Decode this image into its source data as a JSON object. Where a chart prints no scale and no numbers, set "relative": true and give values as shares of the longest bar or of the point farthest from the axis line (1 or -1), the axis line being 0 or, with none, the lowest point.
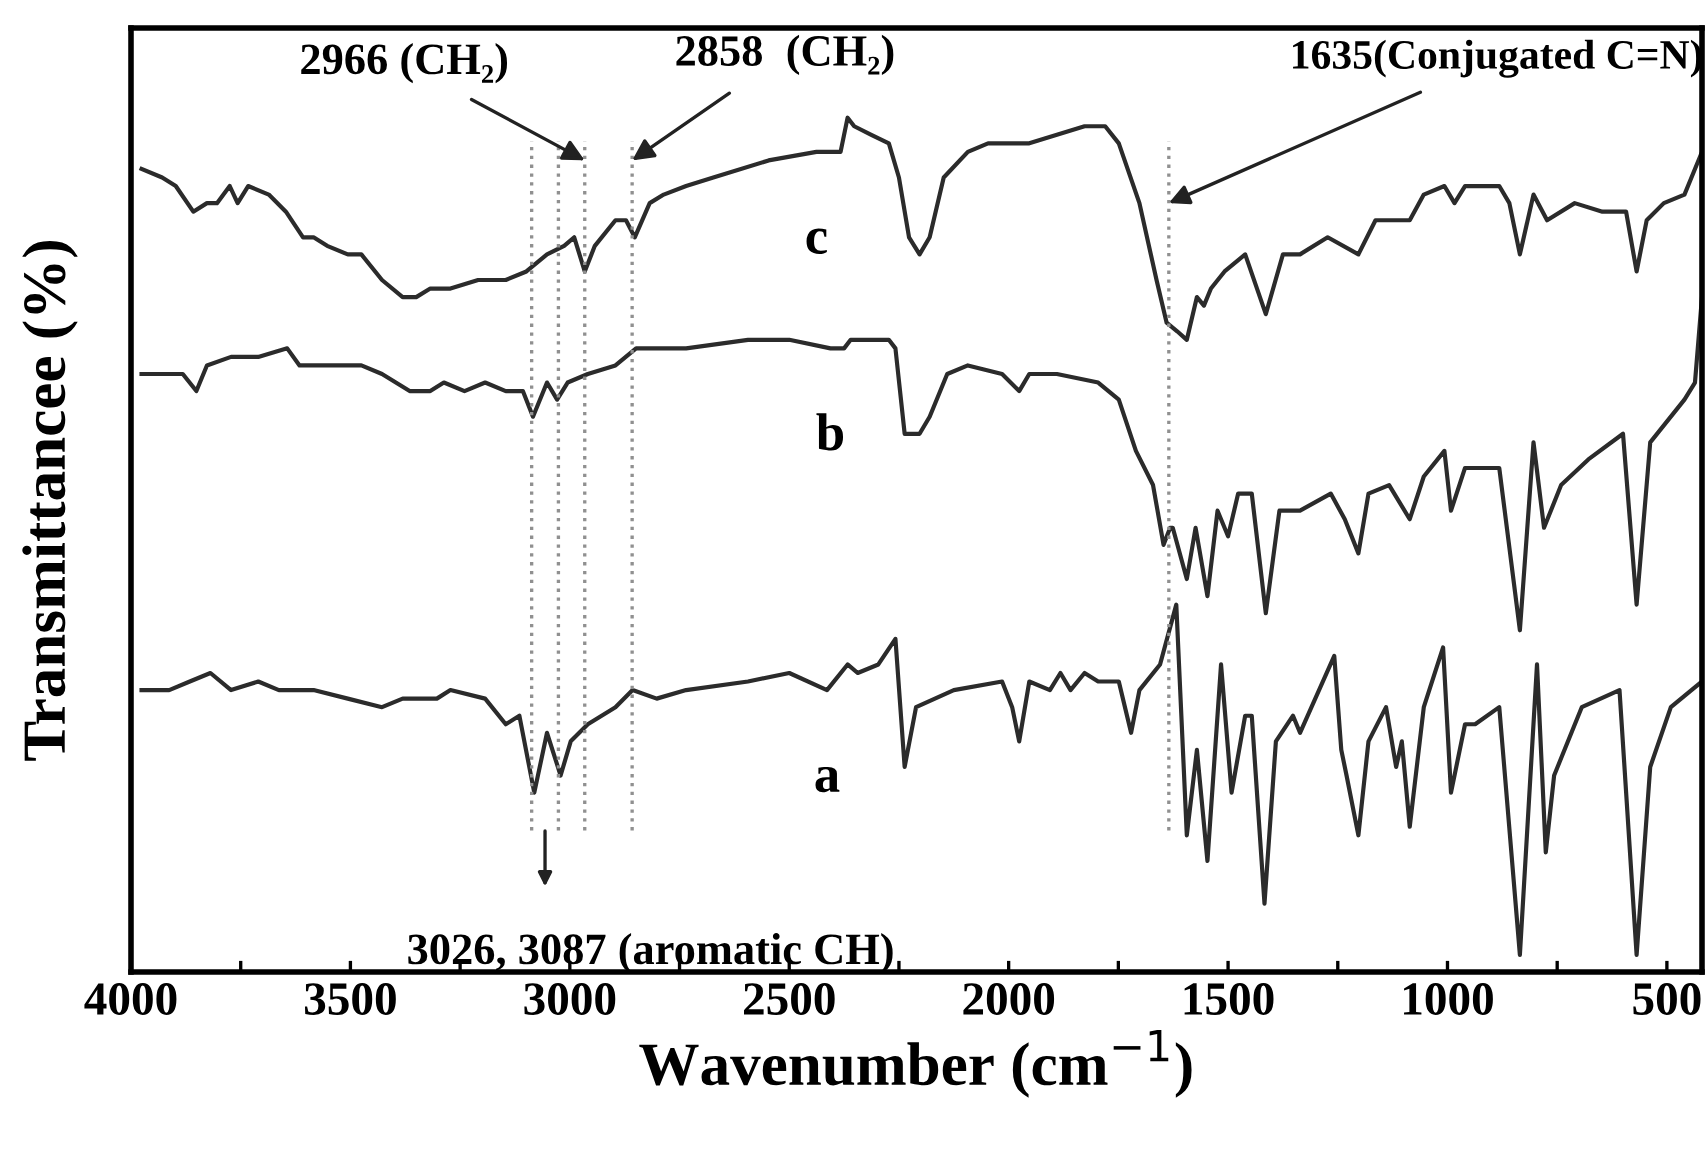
{
  "chart_data": {
    "type": "line",
    "relative": true,
    "xlabel": "Wavenumber (cm$^{−1}$)",
    "ylabel": "Transmittancee (%)",
    "xlim": [
      4000,
      420
    ],
    "xticks": [
      4000,
      {
        "value": 3750,
        "label": null
      },
      3500,
      {
        "value": 3250,
        "label": null
      },
      3000,
      {
        "value": 2750,
        "label": null
      },
      2500,
      {
        "value": 2250,
        "label": null
      },
      2000,
      {
        "value": 1750,
        "label": null
      },
      1500,
      {
        "value": 1250,
        "label": null
      },
      1000,
      {
        "value": 750,
        "label": null
      },
      500
    ],
    "tick_labels": "x",
    "grid": false,
    "marker": "none",
    "line_style": "solid",
    "series": [
      {
        "name": "c",
        "color": "#2b2b2b",
        "x": [
          3976,
          3929,
          3898,
          3858,
          3827,
          3804,
          3775,
          3757,
          3733,
          3686,
          3647,
          3608,
          3584,
          3553,
          3506,
          3475,
          3428,
          3381,
          3350,
          3318,
          3272,
          3209,
          3146,
          3099,
          3052,
          3013,
          2990,
          2966,
          2943,
          2896,
          2872,
          2852,
          2818,
          2786,
          2735,
          2673,
          2547,
          2438,
          2383,
          2367,
          2352,
          2313,
          2273,
          2250,
          2227,
          2203,
          2180,
          2148,
          2093,
          2047,
          1953,
          1890,
          1827,
          1780,
          1749,
          1702,
          1663,
          1640,
          1616,
          1594,
          1571,
          1555,
          1539,
          1508,
          1461,
          1414,
          1375,
          1336,
          1273,
          1203,
          1164,
          1086,
          1054,
          1007,
          984,
          960,
          882,
          859,
          835,
          804,
          773,
          710,
          647,
          593,
          569,
          546,
          507,
          460,
          420
        ],
        "values": [
          0.94,
          0.93,
          0.92,
          0.89,
          0.9,
          0.9,
          0.92,
          0.9,
          0.92,
          0.91,
          0.89,
          0.86,
          0.86,
          0.85,
          0.84,
          0.84,
          0.81,
          0.79,
          0.79,
          0.8,
          0.8,
          0.81,
          0.81,
          0.82,
          0.84,
          0.85,
          0.86,
          0.82,
          0.85,
          0.88,
          0.88,
          0.86,
          0.9,
          0.91,
          0.92,
          0.93,
          0.95,
          0.96,
          0.96,
          1.0,
          0.99,
          0.98,
          0.97,
          0.93,
          0.86,
          0.84,
          0.86,
          0.93,
          0.96,
          0.97,
          0.97,
          0.98,
          0.99,
          0.99,
          0.97,
          0.9,
          0.81,
          0.76,
          0.75,
          0.74,
          0.79,
          0.78,
          0.8,
          0.82,
          0.84,
          0.77,
          0.84,
          0.84,
          0.86,
          0.84,
          0.88,
          0.88,
          0.91,
          0.92,
          0.9,
          0.92,
          0.92,
          0.9,
          0.84,
          0.91,
          0.88,
          0.9,
          0.89,
          0.89,
          0.82,
          0.88,
          0.9,
          0.91,
          0.96
        ]
      },
      {
        "name": "b",
        "color": "#2b2b2b",
        "x": [
          3976,
          3882,
          3851,
          3827,
          3772,
          3710,
          3644,
          3616,
          3553,
          3475,
          3428,
          3365,
          3318,
          3287,
          3240,
          3193,
          3146,
          3107,
          3084,
          3052,
          3029,
          3005,
          2959,
          2896,
          2849,
          2786,
          2735,
          2594,
          2500,
          2406,
          2375,
          2360,
          2273,
          2258,
          2237,
          2203,
          2180,
          2140,
          2093,
          2015,
          1976,
          1953,
          1890,
          1796,
          1749,
          1710,
          1671,
          1647,
          1632,
          1626,
          1594,
          1574,
          1547,
          1524,
          1500,
          1477,
          1446,
          1414,
          1383,
          1336,
          1266,
          1234,
          1203,
          1180,
          1133,
          1086,
          1054,
          1007,
          992,
          960,
          882,
          835,
          804,
          780,
          741,
          679,
          600,
          569,
          538,
          460,
          436,
          420
        ],
        "values": [
          0.7,
          0.7,
          0.68,
          0.71,
          0.72,
          0.72,
          0.73,
          0.71,
          0.71,
          0.71,
          0.7,
          0.68,
          0.68,
          0.69,
          0.68,
          0.69,
          0.68,
          0.68,
          0.65,
          0.69,
          0.67,
          0.69,
          0.7,
          0.71,
          0.73,
          0.73,
          0.73,
          0.74,
          0.74,
          0.73,
          0.73,
          0.74,
          0.74,
          0.73,
          0.63,
          0.63,
          0.65,
          0.7,
          0.71,
          0.7,
          0.68,
          0.7,
          0.7,
          0.69,
          0.67,
          0.61,
          0.57,
          0.5,
          0.52,
          0.52,
          0.46,
          0.52,
          0.44,
          0.54,
          0.51,
          0.56,
          0.56,
          0.42,
          0.54,
          0.54,
          0.56,
          0.53,
          0.49,
          0.56,
          0.57,
          0.53,
          0.58,
          0.61,
          0.54,
          0.59,
          0.59,
          0.4,
          0.62,
          0.52,
          0.57,
          0.6,
          0.63,
          0.43,
          0.62,
          0.67,
          0.69,
          0.79
        ]
      },
      {
        "name": "a",
        "color": "#2b2b2b",
        "x": [
          3976,
          3913,
          3866,
          3819,
          3772,
          3710,
          3663,
          3584,
          3506,
          3428,
          3381,
          3303,
          3272,
          3193,
          3146,
          3115,
          3081,
          3052,
          3021,
          2998,
          2959,
          2896,
          2857,
          2802,
          2735,
          2594,
          2500,
          2414,
          2367,
          2344,
          2297,
          2258,
          2237,
          2211,
          2125,
          2015,
          1992,
          1976,
          1953,
          1906,
          1882,
          1859,
          1827,
          1796,
          1749,
          1721,
          1702,
          1655,
          1618,
          1594,
          1571,
          1547,
          1516,
          1492,
          1461,
          1446,
          1417,
          1391,
          1352,
          1336,
          1258,
          1242,
          1230,
          1203,
          1180,
          1140,
          1117,
          1104,
          1086,
          1054,
          1010,
          992,
          960,
          937,
          882,
          835,
          796,
          776,
          757,
          694,
          608,
          569,
          538,
          491,
          444,
          420
        ],
        "values": [
          0.33,
          0.33,
          0.34,
          0.35,
          0.33,
          0.34,
          0.33,
          0.33,
          0.32,
          0.31,
          0.32,
          0.32,
          0.33,
          0.32,
          0.29,
          0.3,
          0.21,
          0.28,
          0.23,
          0.27,
          0.29,
          0.31,
          0.33,
          0.32,
          0.33,
          0.34,
          0.35,
          0.33,
          0.36,
          0.35,
          0.36,
          0.39,
          0.24,
          0.31,
          0.33,
          0.34,
          0.31,
          0.27,
          0.34,
          0.33,
          0.35,
          0.33,
          0.35,
          0.34,
          0.34,
          0.28,
          0.33,
          0.36,
          0.43,
          0.16,
          0.26,
          0.13,
          0.36,
          0.21,
          0.3,
          0.3,
          0.08,
          0.27,
          0.3,
          0.28,
          0.37,
          0.26,
          0.23,
          0.16,
          0.27,
          0.31,
          0.24,
          0.27,
          0.17,
          0.31,
          0.38,
          0.21,
          0.29,
          0.29,
          0.31,
          0.02,
          0.36,
          0.14,
          0.23,
          0.31,
          0.33,
          0.02,
          0.24,
          0.31,
          0.33,
          0.34
        ]
      }
    ],
    "ref_lines": [
      {
        "axis": "x",
        "value": 3087,
        "label": null,
        "color": "#909090",
        "line_style": "dotted"
      },
      {
        "axis": "x",
        "value": 3026,
        "label": null,
        "color": "#909090",
        "line_style": "dotted"
      },
      {
        "axis": "x",
        "value": 2966,
        "label": null,
        "color": "#909090",
        "line_style": "dotted"
      },
      {
        "axis": "x",
        "value": 2858,
        "label": null,
        "color": "#909090",
        "line_style": "dotted"
      },
      {
        "axis": "x",
        "value": 1635,
        "label": null,
        "color": "#909090",
        "line_style": "dotted"
      }
    ],
    "annotations": [
      {
        "text": "2966 (CH₂)",
        "x": 2966,
        "y": 0.95
      },
      {
        "text": "2858  (CH₂)",
        "x": 2858,
        "y": 0.95
      },
      {
        "text": "1635(Conjugated C=N)",
        "x": 1635,
        "y": 0.9
      },
      "3026, 3087 (aromatic CH)"
    ]
  }
}
